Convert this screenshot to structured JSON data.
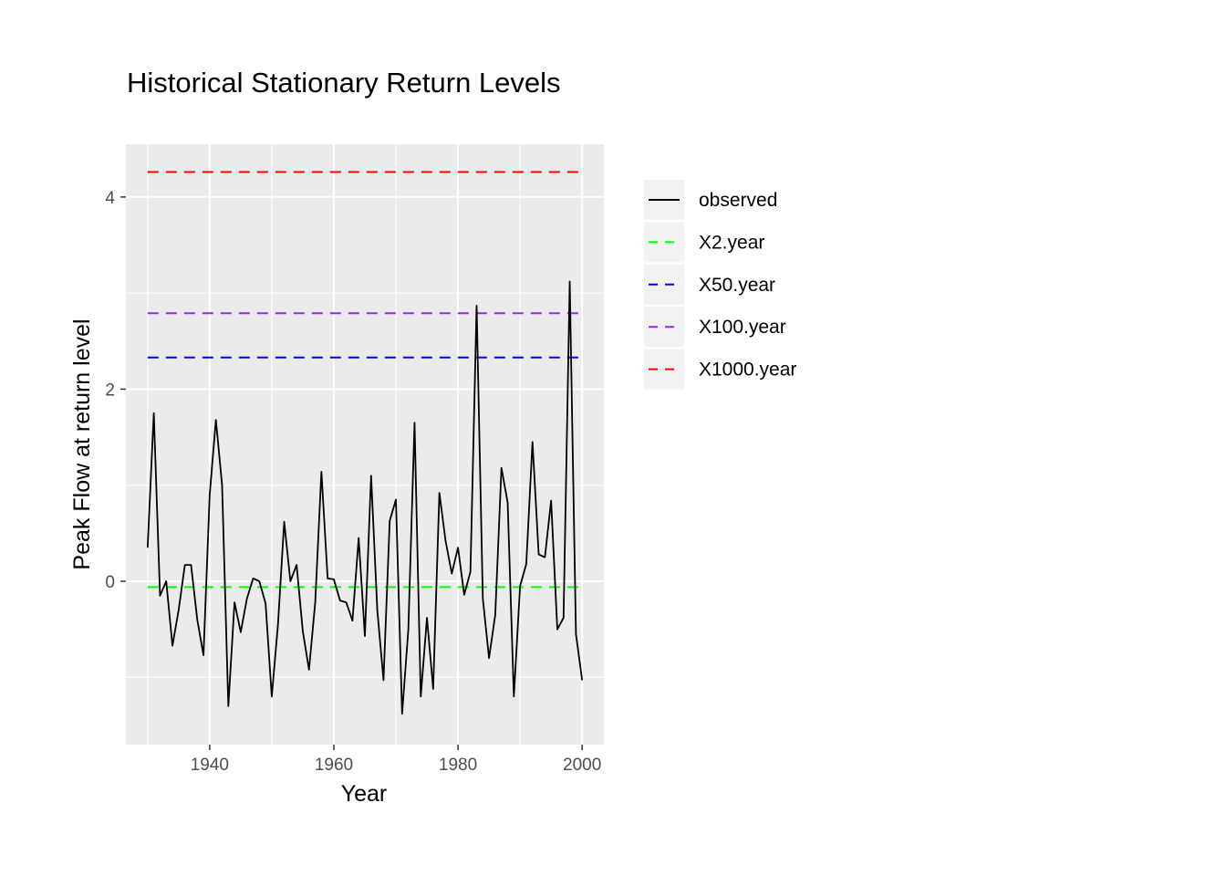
{
  "chart_data": {
    "type": "line",
    "title": "Historical Stationary Return Levels",
    "xlabel": "Year",
    "ylabel": "Peak Flow at return level",
    "xlim": [
      1926.5,
      2003.5
    ],
    "ylim": [
      -1.7,
      4.55
    ],
    "xticks": [
      1940,
      1960,
      1980,
      2000
    ],
    "xtick_labels": [
      "1940",
      "1960",
      "1980",
      "2000"
    ],
    "yticks": [
      0,
      2,
      4
    ],
    "ytick_labels": [
      "0",
      "2",
      "4"
    ],
    "grid": true,
    "background": "#ebebeb",
    "legend_position": "right",
    "series": [
      {
        "name": "observed",
        "color": "#000000",
        "dash": "solid",
        "x": [
          1930,
          1931,
          1932,
          1933,
          1934,
          1935,
          1936,
          1937,
          1938,
          1939,
          1940,
          1941,
          1942,
          1943,
          1944,
          1945,
          1946,
          1947,
          1948,
          1949,
          1950,
          1951,
          1952,
          1953,
          1954,
          1955,
          1956,
          1957,
          1958,
          1959,
          1960,
          1961,
          1962,
          1963,
          1964,
          1965,
          1966,
          1967,
          1968,
          1969,
          1970,
          1971,
          1972,
          1973,
          1974,
          1975,
          1976,
          1977,
          1978,
          1979,
          1980,
          1981,
          1982,
          1983,
          1984,
          1985,
          1986,
          1987,
          1988,
          1989,
          1990,
          1991,
          1992,
          1993,
          1994,
          1995,
          1996,
          1997,
          1998,
          1999,
          2000
        ],
        "y": [
          0.35,
          1.75,
          -0.15,
          0.0,
          -0.67,
          -0.3,
          0.17,
          0.17,
          -0.4,
          -0.77,
          0.9,
          1.68,
          1.0,
          -1.3,
          -0.22,
          -0.53,
          -0.18,
          0.03,
          0.0,
          -0.23,
          -1.2,
          -0.45,
          0.62,
          0.0,
          0.17,
          -0.52,
          -0.92,
          -0.22,
          1.14,
          0.03,
          0.02,
          -0.2,
          -0.22,
          -0.41,
          0.45,
          -0.57,
          1.1,
          -0.3,
          -1.03,
          0.63,
          0.85,
          -1.38,
          -0.5,
          1.65,
          -1.2,
          -0.38,
          -1.12,
          0.92,
          0.42,
          0.08,
          0.35,
          -0.14,
          0.1,
          2.87,
          -0.18,
          -0.8,
          -0.35,
          1.18,
          0.82,
          -1.2,
          -0.05,
          0.18,
          1.45,
          0.28,
          0.25,
          0.84,
          -0.5,
          -0.38,
          3.12,
          -0.55,
          -1.03
        ]
      },
      {
        "name": "X2.year",
        "color": "#00ff00",
        "dash": "dashed",
        "x": [
          1930,
          2000
        ],
        "y": [
          -0.06,
          -0.06
        ]
      },
      {
        "name": "X50.year",
        "color": "#0000ff",
        "dash": "dashed",
        "x": [
          1930,
          2000
        ],
        "y": [
          2.33,
          2.33
        ]
      },
      {
        "name": "X100.year",
        "color": "#a020f0",
        "dash": "dashed",
        "x": [
          1930,
          2000
        ],
        "y": [
          2.79,
          2.79
        ]
      },
      {
        "name": "X1000.year",
        "color": "#ff0000",
        "dash": "dashed",
        "x": [
          1930,
          2000
        ],
        "y": [
          4.26,
          4.26
        ]
      }
    ]
  }
}
